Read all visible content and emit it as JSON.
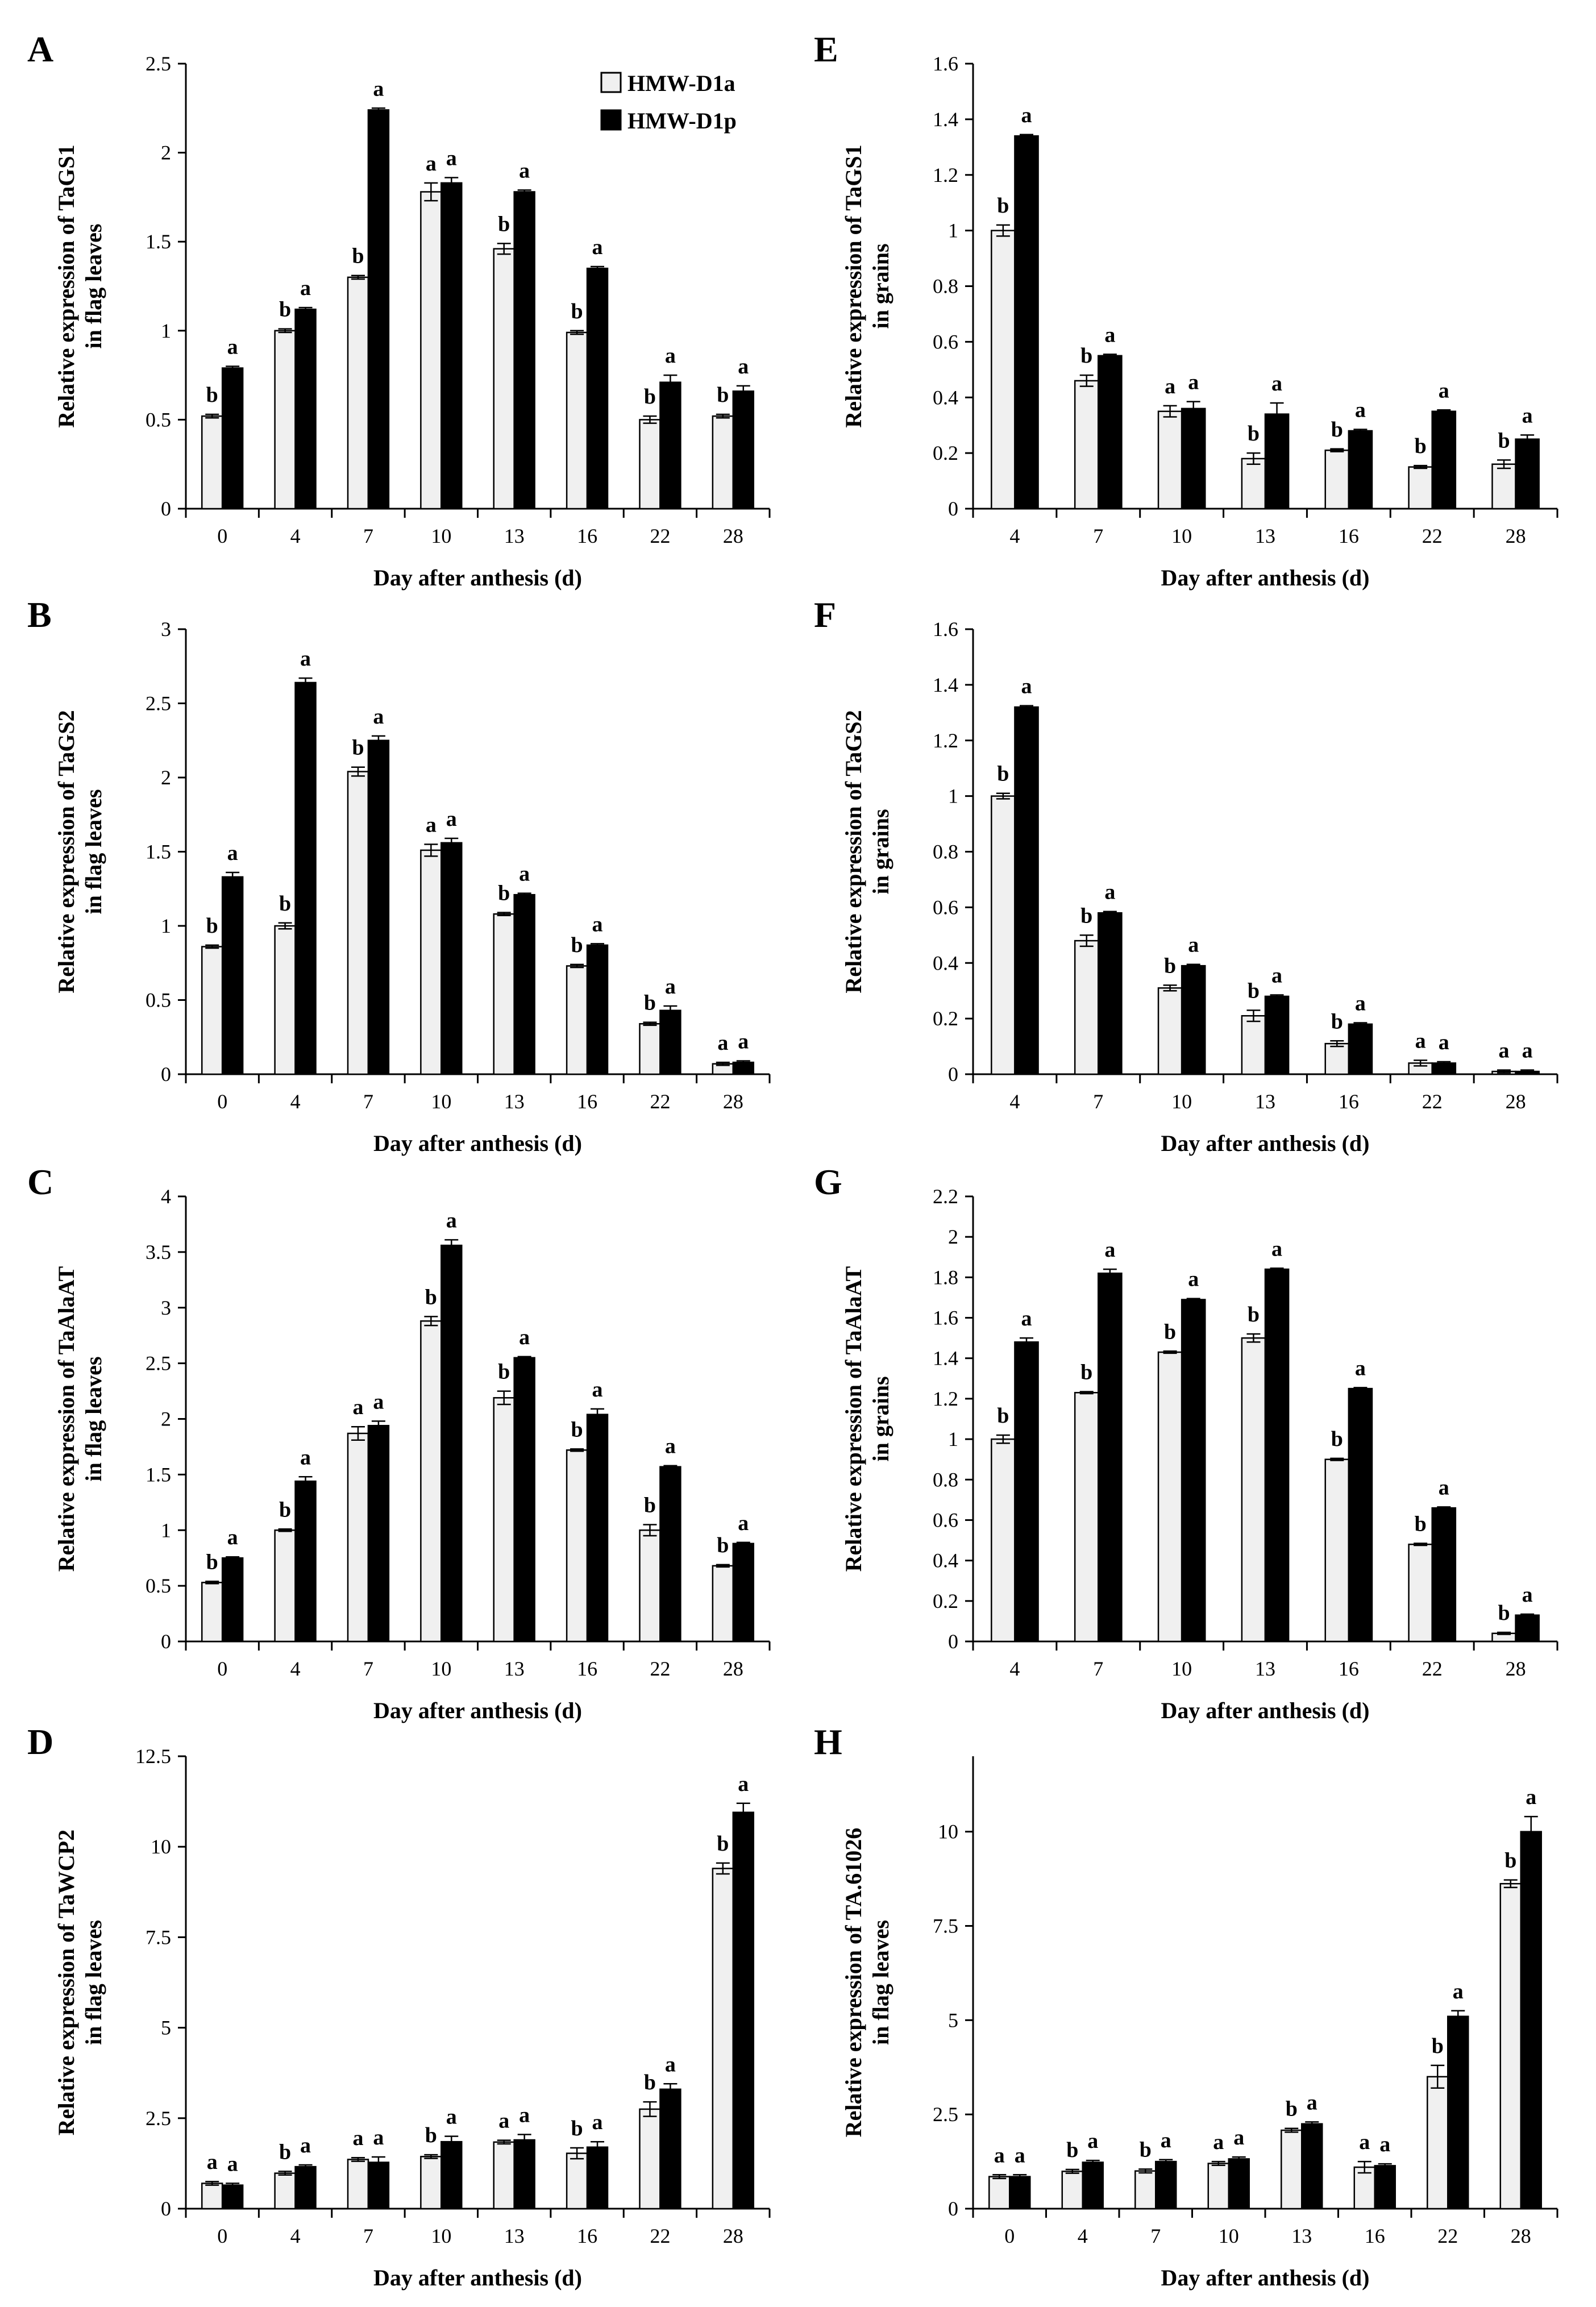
{
  "colors": {
    "HMW-D1a": "#f0f0f0",
    "HMW-D1p": "#000000",
    "axis": "#000000"
  },
  "legend": [
    {
      "name": "HMW-D1a",
      "color": "#f0f0f0"
    },
    {
      "name": "HMW-D1p",
      "color": "#000000"
    }
  ],
  "chart_data": [
    {
      "panel": "A",
      "type": "bar",
      "ylabel": [
        "Relative expression of TaGS1",
        "in flag leaves"
      ],
      "xlabel": "Day after anthesis (d)",
      "categories": [
        "0",
        "4",
        "7",
        "10",
        "13",
        "16",
        "22",
        "28"
      ],
      "ylim": [
        0,
        2.5
      ],
      "yticks": [
        {
          "v": 0,
          "t": "0"
        },
        {
          "v": 0.5,
          "t": "0.5"
        },
        {
          "v": 1,
          "t": "1"
        },
        {
          "v": 1.5,
          "t": "1.5"
        },
        {
          "v": 2,
          "t": "2"
        },
        {
          "v": 2.5,
          "t": "2.5"
        }
      ],
      "series": [
        {
          "name": "HMW-D1a",
          "values": [
            0.52,
            1.0,
            1.3,
            1.78,
            1.46,
            0.99,
            0.5,
            0.52
          ],
          "errors": [
            0.01,
            0.01,
            0.01,
            0.05,
            0.03,
            0.01,
            0.02,
            0.01
          ],
          "labels": [
            "b",
            "b",
            "b",
            "a",
            "b",
            "b",
            "b",
            "b"
          ]
        },
        {
          "name": "HMW-D1p",
          "values": [
            0.79,
            1.12,
            2.24,
            1.83,
            1.78,
            1.35,
            0.71,
            0.66
          ],
          "errors": [
            0.01,
            0.01,
            0.01,
            0.03,
            0.01,
            0.01,
            0.04,
            0.03
          ],
          "labels": [
            "a",
            "a",
            "a",
            "a",
            "a",
            "a",
            "a",
            "a"
          ]
        }
      ]
    },
    {
      "panel": "E",
      "type": "bar",
      "ylabel": [
        "Relative expression of TaGS1",
        "in grains"
      ],
      "xlabel": "Day after anthesis (d)",
      "categories": [
        "4",
        "7",
        "10",
        "13",
        "16",
        "22",
        "28"
      ],
      "ylim": [
        0,
        1.6
      ],
      "yticks": [
        {
          "v": 0,
          "t": "0"
        },
        {
          "v": 0.2,
          "t": "0.2"
        },
        {
          "v": 0.4,
          "t": "0.4"
        },
        {
          "v": 0.6,
          "t": "0.6"
        },
        {
          "v": 0.8,
          "t": "0.8"
        },
        {
          "v": 1,
          "t": "1"
        },
        {
          "v": 1.2,
          "t": "1.2"
        },
        {
          "v": 1.4,
          "t": "1.4"
        },
        {
          "v": 1.6,
          "t": "1.6"
        }
      ],
      "series": [
        {
          "name": "HMW-D1a",
          "values": [
            1.0,
            0.46,
            0.35,
            0.18,
            0.21,
            0.15,
            0.16
          ],
          "errors": [
            0.02,
            0.02,
            0.02,
            0.02,
            0.005,
            0.005,
            0.015
          ],
          "labels": [
            "b",
            "b",
            "a",
            "b",
            "b",
            "b",
            "b"
          ]
        },
        {
          "name": "HMW-D1p",
          "values": [
            1.34,
            0.55,
            0.36,
            0.34,
            0.28,
            0.35,
            0.25
          ],
          "errors": [
            0.005,
            0.005,
            0.025,
            0.04,
            0.005,
            0.005,
            0.015
          ],
          "labels": [
            "a",
            "a",
            "a",
            "a",
            "a",
            "a",
            "a"
          ]
        }
      ]
    },
    {
      "panel": "B",
      "type": "bar",
      "ylabel": [
        "Relative expression of TaGS2",
        "in flag leaves"
      ],
      "xlabel": "Day after anthesis (d)",
      "categories": [
        "0",
        "4",
        "7",
        "10",
        "13",
        "16",
        "22",
        "28"
      ],
      "ylim": [
        0,
        3
      ],
      "yticks": [
        {
          "v": 0,
          "t": "0"
        },
        {
          "v": 0.5,
          "t": "0.5"
        },
        {
          "v": 1,
          "t": "1"
        },
        {
          "v": 1.5,
          "t": "1.5"
        },
        {
          "v": 2,
          "t": "2"
        },
        {
          "v": 2.5,
          "t": "2.5"
        },
        {
          "v": 3,
          "t": "3"
        }
      ],
      "series": [
        {
          "name": "HMW-D1a",
          "values": [
            0.86,
            1.0,
            2.04,
            1.51,
            1.08,
            0.73,
            0.34,
            0.07
          ],
          "errors": [
            0.01,
            0.02,
            0.03,
            0.04,
            0.01,
            0.01,
            0.01,
            0.01
          ],
          "labels": [
            "b",
            "b",
            "b",
            "a",
            "b",
            "b",
            "b",
            "a"
          ]
        },
        {
          "name": "HMW-D1p",
          "values": [
            1.33,
            2.64,
            2.25,
            1.56,
            1.21,
            0.87,
            0.43,
            0.08
          ],
          "errors": [
            0.03,
            0.03,
            0.03,
            0.03,
            0.01,
            0.01,
            0.03,
            0.01
          ],
          "labels": [
            "a",
            "a",
            "a",
            "a",
            "a",
            "a",
            "a",
            "a"
          ]
        }
      ]
    },
    {
      "panel": "F",
      "type": "bar",
      "ylabel": [
        "Relative expression of TaGS2",
        "in grains"
      ],
      "xlabel": "Day after anthesis (d)",
      "categories": [
        "4",
        "7",
        "10",
        "13",
        "16",
        "22",
        "28"
      ],
      "ylim": [
        0,
        1.6
      ],
      "yticks": [
        {
          "v": 0,
          "t": "0"
        },
        {
          "v": 0.2,
          "t": "0.2"
        },
        {
          "v": 0.4,
          "t": "0.4"
        },
        {
          "v": 0.6,
          "t": "0.6"
        },
        {
          "v": 0.8,
          "t": "0.8"
        },
        {
          "v": 1,
          "t": "1"
        },
        {
          "v": 1.2,
          "t": "1.2"
        },
        {
          "v": 1.4,
          "t": "1.4"
        },
        {
          "v": 1.6,
          "t": "1.6"
        }
      ],
      "series": [
        {
          "name": "HMW-D1a",
          "values": [
            1.0,
            0.48,
            0.31,
            0.21,
            0.11,
            0.04,
            0.01
          ],
          "errors": [
            0.01,
            0.02,
            0.01,
            0.02,
            0.01,
            0.01,
            0.005
          ],
          "labels": [
            "b",
            "b",
            "b",
            "b",
            "b",
            "a",
            "a"
          ]
        },
        {
          "name": "HMW-D1p",
          "values": [
            1.32,
            0.58,
            0.39,
            0.28,
            0.18,
            0.04,
            0.01
          ],
          "errors": [
            0.005,
            0.005,
            0.005,
            0.005,
            0.005,
            0.005,
            0.005
          ],
          "labels": [
            "a",
            "a",
            "a",
            "a",
            "a",
            "a",
            "a"
          ]
        }
      ]
    },
    {
      "panel": "C",
      "type": "bar",
      "ylabel": [
        "Relative expression of TaAlaAT",
        "in flag leaves"
      ],
      "xlabel": "Day after anthesis (d)",
      "categories": [
        "0",
        "4",
        "7",
        "10",
        "13",
        "16",
        "22",
        "28"
      ],
      "ylim": [
        0,
        4
      ],
      "yticks": [
        {
          "v": 0,
          "t": "0"
        },
        {
          "v": 0.5,
          "t": "0.5"
        },
        {
          "v": 1,
          "t": "1"
        },
        {
          "v": 1.5,
          "t": "1.5"
        },
        {
          "v": 2,
          "t": "2"
        },
        {
          "v": 2.5,
          "t": "2.5"
        },
        {
          "v": 3,
          "t": "3"
        },
        {
          "v": 3.5,
          "t": "3.5"
        },
        {
          "v": 4,
          "t": "4"
        }
      ],
      "series": [
        {
          "name": "HMW-D1a",
          "values": [
            0.53,
            1.0,
            1.87,
            2.88,
            2.19,
            1.72,
            1.0,
            0.68
          ],
          "errors": [
            0.01,
            0.01,
            0.06,
            0.04,
            0.06,
            0.01,
            0.05,
            0.01
          ],
          "labels": [
            "b",
            "b",
            "a",
            "b",
            "b",
            "b",
            "b",
            "b"
          ]
        },
        {
          "name": "HMW-D1p",
          "values": [
            0.75,
            1.44,
            1.94,
            3.56,
            2.55,
            2.04,
            1.57,
            0.88
          ],
          "errors": [
            0.01,
            0.04,
            0.04,
            0.05,
            0.01,
            0.05,
            0.01,
            0.01
          ],
          "labels": [
            "a",
            "a",
            "a",
            "a",
            "a",
            "a",
            "a",
            "a"
          ]
        }
      ]
    },
    {
      "panel": "G",
      "type": "bar",
      "ylabel": [
        "Relative expression of TaAlaAT",
        "in grains"
      ],
      "xlabel": "Day after anthesis (d)",
      "categories": [
        "4",
        "7",
        "10",
        "13",
        "16",
        "22",
        "28"
      ],
      "ylim": [
        0,
        2.2
      ],
      "yticks": [
        {
          "v": 0,
          "t": "0"
        },
        {
          "v": 0.2,
          "t": "0.2"
        },
        {
          "v": 0.4,
          "t": "0.4"
        },
        {
          "v": 0.6,
          "t": "0.6"
        },
        {
          "v": 0.8,
          "t": "0.8"
        },
        {
          "v": 1,
          "t": "1"
        },
        {
          "v": 1.2,
          "t": "1.2"
        },
        {
          "v": 1.4,
          "t": "1.4"
        },
        {
          "v": 1.6,
          "t": "1.6"
        },
        {
          "v": 1.8,
          "t": "1.8"
        },
        {
          "v": 2,
          "t": "2"
        },
        {
          "v": 2.2,
          "t": "2.2"
        }
      ],
      "series": [
        {
          "name": "HMW-D1a",
          "values": [
            1.0,
            1.23,
            1.43,
            1.5,
            0.9,
            0.48,
            0.04
          ],
          "errors": [
            0.02,
            0.005,
            0.005,
            0.02,
            0.005,
            0.005,
            0.005
          ],
          "labels": [
            "b",
            "b",
            "b",
            "b",
            "b",
            "b",
            "b"
          ]
        },
        {
          "name": "HMW-D1p",
          "values": [
            1.48,
            1.82,
            1.69,
            1.84,
            1.25,
            0.66,
            0.13
          ],
          "errors": [
            0.02,
            0.02,
            0.005,
            0.005,
            0.005,
            0.005,
            0.005
          ],
          "labels": [
            "a",
            "a",
            "a",
            "a",
            "a",
            "a",
            "a"
          ]
        }
      ]
    },
    {
      "panel": "D",
      "type": "bar",
      "ylabel": [
        "Relative expression of  TaWCP2",
        "in flag leaves"
      ],
      "xlabel": "Day after anthesis (d)",
      "categories": [
        "0",
        "4",
        "7",
        "10",
        "13",
        "16",
        "22",
        "28"
      ],
      "ylim": [
        0,
        12.5
      ],
      "yticks": [
        {
          "v": 0,
          "t": "0"
        },
        {
          "v": 2.5,
          "t": "2.5"
        },
        {
          "v": 5,
          "t": "5"
        },
        {
          "v": 7.5,
          "t": "7.5"
        },
        {
          "v": 10,
          "t": "10"
        },
        {
          "v": 12.5,
          "t": "12.5"
        }
      ],
      "series": [
        {
          "name": "HMW-D1a",
          "values": [
            0.7,
            0.98,
            1.36,
            1.44,
            1.84,
            1.53,
            2.75,
            9.4
          ],
          "errors": [
            0.05,
            0.05,
            0.05,
            0.05,
            0.05,
            0.15,
            0.2,
            0.15
          ],
          "labels": [
            "a",
            "b",
            "a",
            "b",
            "a",
            "b",
            "b",
            "b"
          ]
        },
        {
          "name": "HMW-D1p",
          "values": [
            0.65,
            1.16,
            1.28,
            1.85,
            1.9,
            1.7,
            3.3,
            10.95
          ],
          "errors": [
            0.05,
            0.05,
            0.15,
            0.15,
            0.15,
            0.15,
            0.15,
            0.25
          ],
          "labels": [
            "a",
            "a",
            "a",
            "a",
            "a",
            "a",
            "a",
            "a"
          ]
        }
      ]
    },
    {
      "panel": "H",
      "type": "bar",
      "ylabel": [
        "Relative expression of TA.61026",
        "in flag leaves"
      ],
      "xlabel": "Day after anthesis (d)",
      "categories": [
        "0",
        "4",
        "7",
        "10",
        "13",
        "16",
        "22",
        "28"
      ],
      "ylim": [
        0,
        12
      ],
      "yticks": [
        {
          "v": 0,
          "t": "0"
        },
        {
          "v": 2.5,
          "t": "2.5"
        },
        {
          "v": 5,
          "t": "5"
        },
        {
          "v": 7.5,
          "t": "7.5"
        },
        {
          "v": 10,
          "t": "10"
        }
      ],
      "series": [
        {
          "name": "HMW-D1a",
          "values": [
            0.85,
            0.99,
            1.0,
            1.2,
            2.08,
            1.1,
            3.5,
            8.62
          ],
          "errors": [
            0.05,
            0.05,
            0.05,
            0.05,
            0.05,
            0.15,
            0.3,
            0.1
          ],
          "labels": [
            "a",
            "b",
            "b",
            "a",
            "b",
            "a",
            "b",
            "b"
          ]
        },
        {
          "name": "HMW-D1p",
          "values": [
            0.85,
            1.23,
            1.25,
            1.32,
            2.25,
            1.14,
            5.1,
            10.0
          ],
          "errors": [
            0.05,
            0.05,
            0.05,
            0.05,
            0.05,
            0.05,
            0.15,
            0.4
          ],
          "labels": [
            "a",
            "a",
            "a",
            "a",
            "a",
            "a",
            "a",
            "a"
          ]
        }
      ]
    }
  ]
}
